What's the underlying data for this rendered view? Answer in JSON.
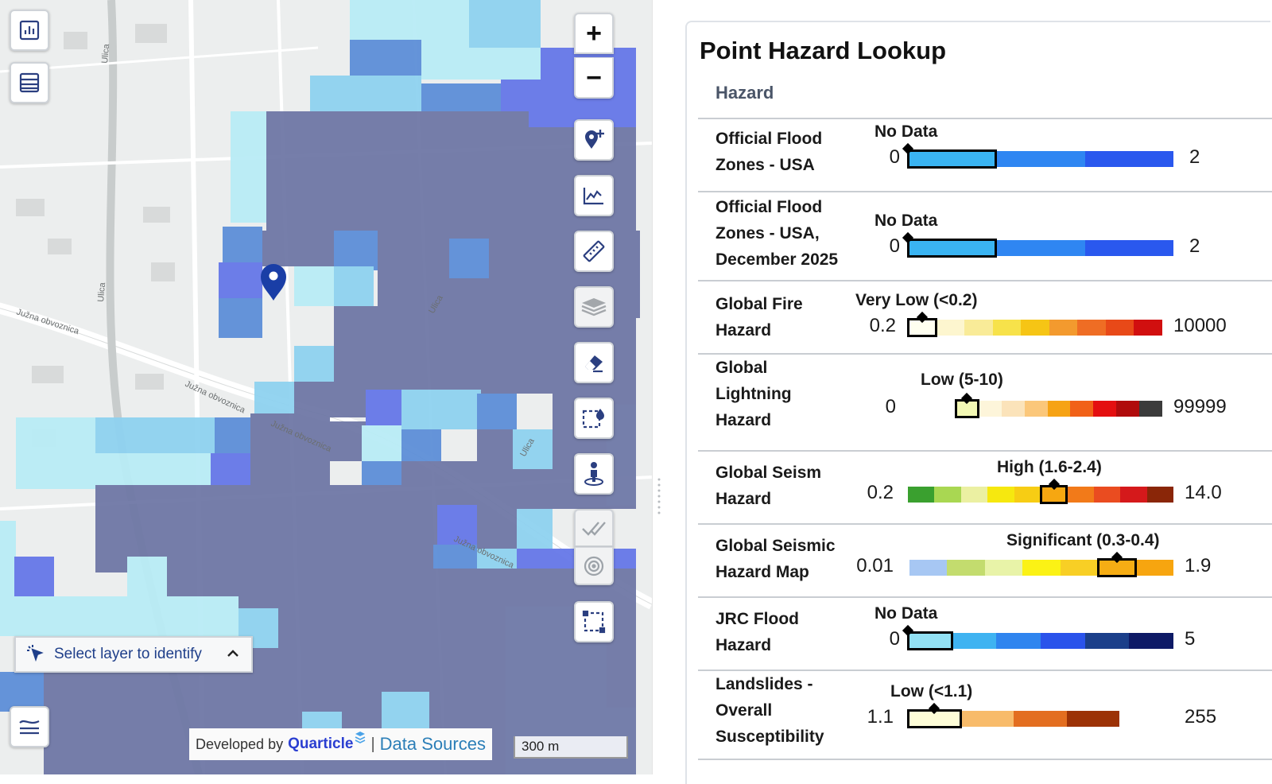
{
  "map": {
    "zoom_in_label": "+",
    "zoom_out_label": "−",
    "identify": {
      "label": "Select layer to identify"
    },
    "attribution": {
      "developed_by": "Developed by",
      "brand": "Quarticle",
      "separator": "|",
      "sources": "Data Sources"
    },
    "scale": "300 m",
    "streets": [
      "Južna obvoznica",
      "Južna obvoznica",
      "Južna obvoznica",
      "Južna obvoznica",
      "Ulica",
      "Ulica",
      "Ulica",
      "Ulica"
    ],
    "colors": {
      "dark": "#6f78a6",
      "mid": "#5d8fd8",
      "light": "#8fd2f0",
      "pale": "#b9ecf6",
      "indigo": "#6678e8",
      "pin": "#1a3ea6"
    }
  },
  "panel": {
    "title": "Point Hazard Lookup",
    "column_header": "Hazard",
    "rows": [
      {
        "label": [
          "Official Flood",
          "Zones - USA"
        ],
        "value": "No Data",
        "min": "0",
        "max": "2",
        "colors": [
          "#3ab4f2",
          "#2f86f2",
          "#2a58ee"
        ],
        "active": 0
      },
      {
        "label": [
          "Official Flood",
          "Zones - USA,",
          "December 2025"
        ],
        "value": "No Data",
        "min": "0",
        "max": "2",
        "colors": [
          "#3ab4f2",
          "#2f86f2",
          "#2a58ee"
        ],
        "active": 0
      },
      {
        "label": [
          "Global Fire",
          "Hazard"
        ],
        "value": "Very Low (<0.2)",
        "min": "0.2",
        "max": "10000",
        "colors": [
          "#fffff0",
          "#fdf6cf",
          "#f9eb98",
          "#f7e24a",
          "#f6c515",
          "#f39a2e",
          "#ef6d24",
          "#e84918",
          "#d10f0f"
        ],
        "active": 0
      },
      {
        "label": [
          "Global",
          "Lightning",
          "Hazard"
        ],
        "value": "Low (5-10)",
        "min": "0",
        "max": "99999",
        "colors": [
          "#f3f8b4",
          "#fdf5da",
          "#fbe3ba",
          "#fbc77a",
          "#f6a315",
          "#f16117",
          "#e40f10",
          "#b00b0c",
          "#3b3b3b"
        ],
        "active": 0
      },
      {
        "label": [
          "Global Seism",
          "Hazard"
        ],
        "value": "High (1.6-2.4)",
        "min": "0.2",
        "max": "14.0",
        "colors": [
          "#3aa02f",
          "#a9d752",
          "#ebf0a2",
          "#f6e80f",
          "#f7cd14",
          "#f6a711",
          "#f27a19",
          "#ea4c20",
          "#d5191b",
          "#8a2608"
        ],
        "active": 5
      },
      {
        "label": [
          "Global Seismic",
          "Hazard Map"
        ],
        "value": "Significant (0.3-0.4)",
        "min": "0.01",
        "max": "1.9",
        "colors": [
          "#a7c7f3",
          "#c3dc6e",
          "#e8f3a8",
          "#fbf215",
          "#f8cf25",
          "#f6ad14",
          "#f7a50f"
        ],
        "active": 5
      },
      {
        "label": [
          "JRC Flood",
          "Hazard"
        ],
        "value": "No Data",
        "min": "0",
        "max": "5",
        "colors": [
          "#92e1f4",
          "#3fb3f1",
          "#2f85ef",
          "#2a53eb",
          "#1b3f8a",
          "#0e1a66"
        ],
        "active": 0
      },
      {
        "label": [
          "Landslides -",
          "Overall",
          "Susceptibility"
        ],
        "value": "Low (<1.1)",
        "min": "1.1",
        "max": "255",
        "colors": [
          "#fefdd7",
          "#f8bb6a",
          "#e36e20",
          "#9c3206"
        ],
        "active": 0
      }
    ]
  }
}
